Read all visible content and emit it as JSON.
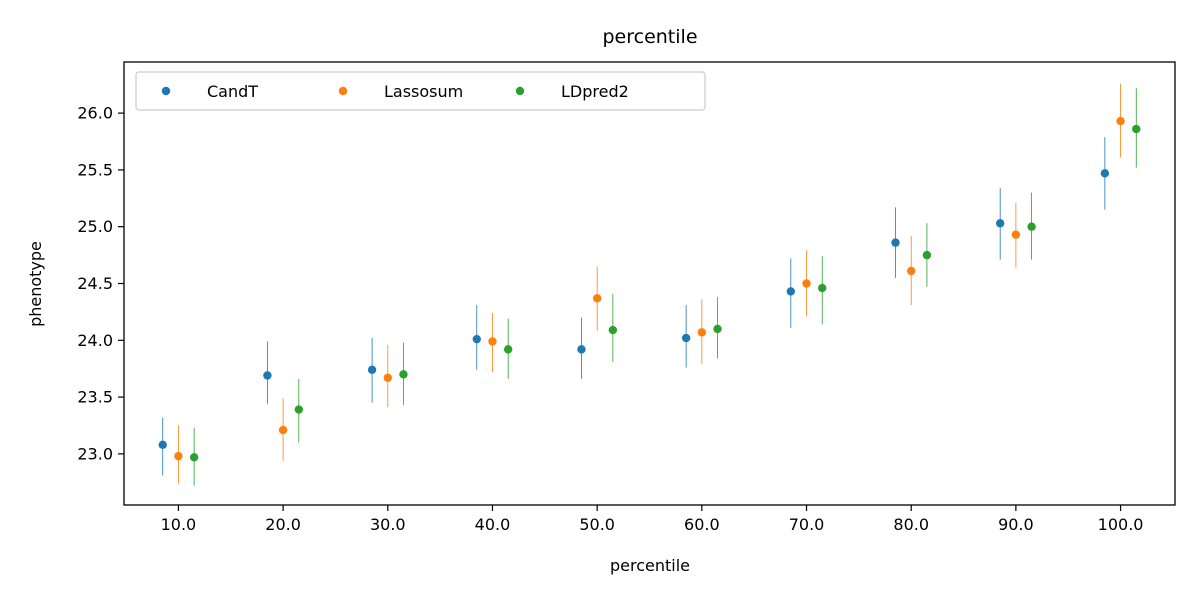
{
  "chart_data": {
    "type": "scatter",
    "title": "percentile",
    "xlabel": "percentile",
    "ylabel": "phenotype",
    "categories": [
      "10.0",
      "20.0",
      "30.0",
      "40.0",
      "50.0",
      "60.0",
      "70.0",
      "80.0",
      "90.0",
      "100.0"
    ],
    "x_values": [
      10,
      20,
      30,
      40,
      50,
      60,
      70,
      80,
      90,
      100
    ],
    "series_offset": 1.5,
    "ylim": [
      22.55,
      26.45
    ],
    "yticks": [
      23.0,
      23.5,
      24.0,
      24.5,
      25.0,
      25.5,
      26.0
    ],
    "ytick_labels": [
      "23.0",
      "23.5",
      "24.0",
      "24.5",
      "25.0",
      "25.5",
      "26.0"
    ],
    "grid": false,
    "legend_position": "top-left",
    "series": [
      {
        "name": "CandT",
        "color": "#1f77b4",
        "values": [
          23.08,
          23.69,
          23.74,
          24.01,
          23.92,
          24.02,
          24.43,
          24.86,
          25.03,
          25.47
        ],
        "lower": [
          22.81,
          23.44,
          23.45,
          23.74,
          23.66,
          23.76,
          24.11,
          24.55,
          24.71,
          25.15
        ],
        "upper": [
          23.32,
          23.99,
          24.02,
          24.31,
          24.2,
          24.31,
          24.72,
          25.17,
          25.34,
          25.79
        ]
      },
      {
        "name": "Lassosum",
        "color": "#ff7f0e",
        "values": [
          22.98,
          23.21,
          23.67,
          23.99,
          24.37,
          24.07,
          24.5,
          24.61,
          24.93,
          25.93
        ],
        "lower": [
          22.74,
          22.94,
          23.41,
          23.72,
          24.08,
          23.79,
          24.21,
          24.31,
          24.64,
          25.61
        ],
        "upper": [
          23.25,
          23.49,
          23.96,
          24.24,
          24.65,
          24.36,
          24.79,
          24.92,
          25.21,
          26.26
        ]
      },
      {
        "name": "LDpred2",
        "color": "#2ca02c",
        "values": [
          22.97,
          23.39,
          23.7,
          23.92,
          24.09,
          24.1,
          24.46,
          24.75,
          25.0,
          25.86
        ],
        "lower": [
          22.72,
          23.1,
          23.43,
          23.66,
          23.81,
          23.84,
          24.14,
          24.47,
          24.71,
          25.52
        ],
        "upper": [
          23.23,
          23.66,
          23.98,
          24.19,
          24.41,
          24.38,
          24.74,
          25.03,
          25.3,
          26.22
        ]
      }
    ]
  }
}
